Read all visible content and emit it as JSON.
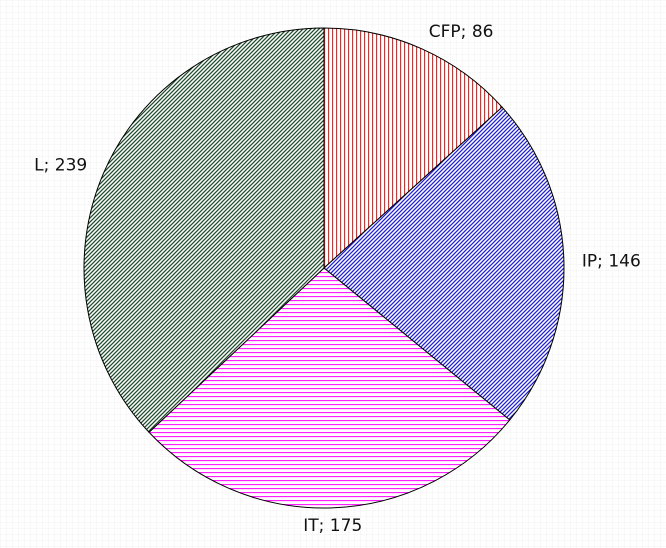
{
  "chart_data": {
    "type": "pie",
    "categories": [
      "CFP",
      "IP",
      "IT",
      "L"
    ],
    "values": [
      86,
      146,
      175,
      239
    ],
    "value_labels": [
      "CFP; 86",
      "IP; 146",
      "IT; 175",
      "L; 239"
    ],
    "colors": [
      "#ff2020",
      "#2020d0",
      "#ff20ff",
      "#1e4a2a"
    ]
  }
}
